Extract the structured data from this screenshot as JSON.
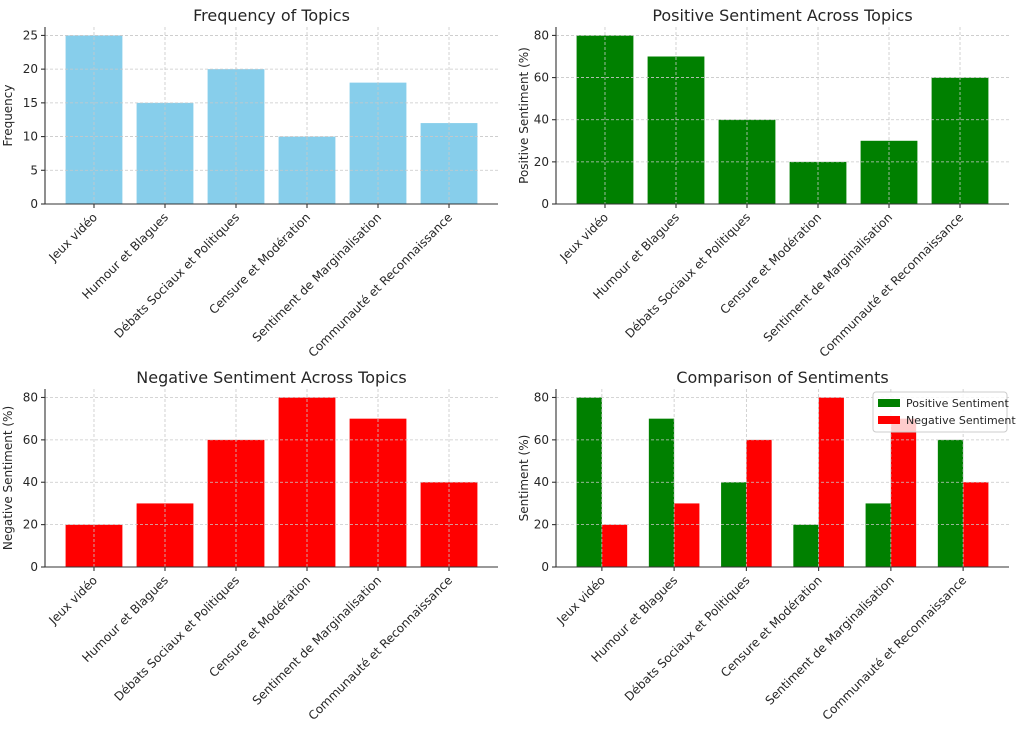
{
  "chart_data": [
    {
      "type": "bar",
      "title": "Frequency of Topics",
      "xlabel": "",
      "ylabel": "Frequency",
      "categories": [
        "Jeux vidéo",
        "Humour et Blagues",
        "Débats Sociaux et Politiques",
        "Censure et Modération",
        "Sentiment de Marginalisation",
        "Communauté et Reconnaissance"
      ],
      "series": [
        {
          "name": "Frequency",
          "values": [
            25,
            15,
            20,
            10,
            18,
            12
          ],
          "color": "#87ceeb"
        }
      ],
      "ylim": [
        0,
        26.25
      ],
      "yticks": [
        0,
        5,
        10,
        15,
        20,
        25
      ],
      "grid": true,
      "legend": null
    },
    {
      "type": "bar",
      "title": "Positive Sentiment Across Topics",
      "xlabel": "",
      "ylabel": "Positive Sentiment (%)",
      "categories": [
        "Jeux vidéo",
        "Humour et Blagues",
        "Débats Sociaux et Politiques",
        "Censure et Modération",
        "Sentiment de Marginalisation",
        "Communauté et Reconnaissance"
      ],
      "series": [
        {
          "name": "Positive Sentiment",
          "values": [
            80,
            70,
            40,
            20,
            30,
            60
          ],
          "color": "#008000"
        }
      ],
      "ylim": [
        0,
        84
      ],
      "yticks": [
        0,
        20,
        40,
        60,
        80
      ],
      "grid": true,
      "legend": null
    },
    {
      "type": "bar",
      "title": "Negative Sentiment Across Topics",
      "xlabel": "",
      "ylabel": "Negative Sentiment (%)",
      "categories": [
        "Jeux vidéo",
        "Humour et Blagues",
        "Débats Sociaux et Politiques",
        "Censure et Modération",
        "Sentiment de Marginalisation",
        "Communauté et Reconnaissance"
      ],
      "series": [
        {
          "name": "Negative Sentiment",
          "values": [
            20,
            30,
            60,
            80,
            70,
            40
          ],
          "color": "#ff0000"
        }
      ],
      "ylim": [
        0,
        84
      ],
      "yticks": [
        0,
        20,
        40,
        60,
        80
      ],
      "grid": true,
      "legend": null
    },
    {
      "type": "bar",
      "title": "Comparison of Sentiments",
      "xlabel": "",
      "ylabel": "Sentiment (%)",
      "categories": [
        "Jeux vidéo",
        "Humour et Blagues",
        "Débats Sociaux et Politiques",
        "Censure et Modération",
        "Sentiment de Marginalisation",
        "Communauté et Reconnaissance"
      ],
      "series": [
        {
          "name": "Positive Sentiment",
          "values": [
            80,
            70,
            40,
            20,
            30,
            60
          ],
          "color": "#008000"
        },
        {
          "name": "Negative Sentiment",
          "values": [
            20,
            30,
            60,
            80,
            70,
            40
          ],
          "color": "#ff0000"
        }
      ],
      "ylim": [
        0,
        84
      ],
      "yticks": [
        0,
        20,
        40,
        60,
        80
      ],
      "grid": true,
      "legend": "top-right"
    }
  ]
}
